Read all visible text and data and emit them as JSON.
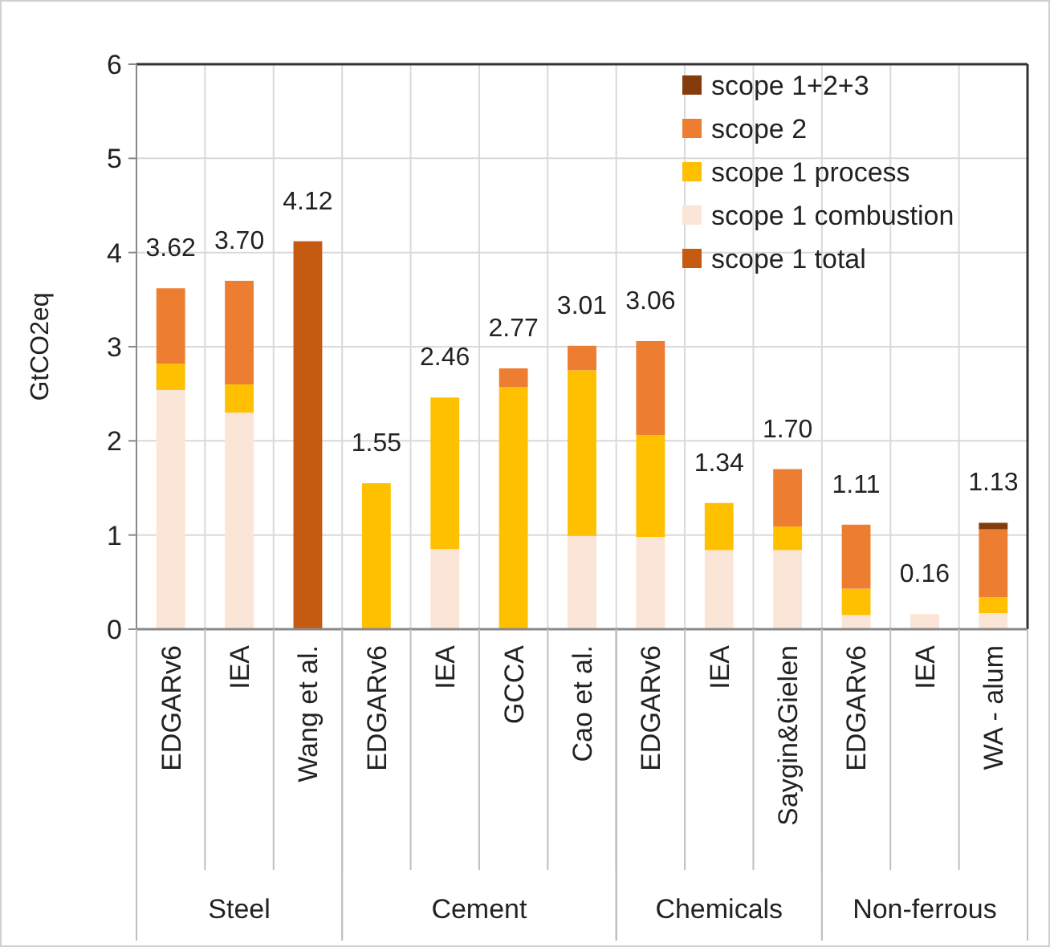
{
  "chart_data": {
    "type": "bar",
    "stacked": true,
    "ylabel": "GtCO2eq",
    "categories": [
      "EDGARv6",
      "IEA",
      "Wang et al.",
      "EDGARv6",
      "IEA",
      "GCCA",
      "Cao et al.",
      "EDGARv6",
      "IEA",
      "Saygin&Gielen",
      "EDGARv6",
      "IEA",
      "WA - alum"
    ],
    "series": [
      {
        "name": "scope 1 total",
        "color": "#c55a11",
        "values": [
          0,
          0,
          4.12,
          0,
          0,
          0,
          0,
          0,
          0,
          0,
          0,
          0,
          0
        ]
      },
      {
        "name": "scope 1 combustion",
        "color": "#fbe5d6",
        "values": [
          2.54,
          2.3,
          0,
          0,
          0.85,
          0,
          0.99,
          0.98,
          0.84,
          0.84,
          0.15,
          0.16,
          0.17
        ]
      },
      {
        "name": "scope 1 process",
        "color": "#ffc000",
        "values": [
          0.28,
          0.3,
          0,
          1.55,
          1.61,
          2.57,
          1.76,
          1.08,
          0.5,
          0.25,
          0.28,
          0,
          0.17
        ]
      },
      {
        "name": "scope 2",
        "color": "#ed7d31",
        "values": [
          0.8,
          1.1,
          0,
          0,
          0,
          0.2,
          0.26,
          1.0,
          0,
          0.61,
          0.68,
          0,
          0.72
        ]
      },
      {
        "name": "scope 1+2+3",
        "color": "#843c0c",
        "values": [
          0,
          0,
          0,
          0,
          0,
          0,
          0,
          0,
          0,
          0,
          0,
          0,
          0.07
        ]
      }
    ],
    "totals": [
      "3.62",
      "3.70",
      "4.12",
      "1.55",
      "2.46",
      "2.77",
      "3.01",
      "3.06",
      "1.34",
      "1.70",
      "1.11",
      "0.16",
      "1.13"
    ],
    "ylim": [
      0,
      6
    ],
    "yticks": [
      0,
      1,
      2,
      3,
      4,
      5,
      6
    ],
    "grid": true,
    "legend": "top right",
    "annotations": [
      "Steel",
      "Cement",
      "Chemicals",
      "Non-ferrous"
    ]
  }
}
